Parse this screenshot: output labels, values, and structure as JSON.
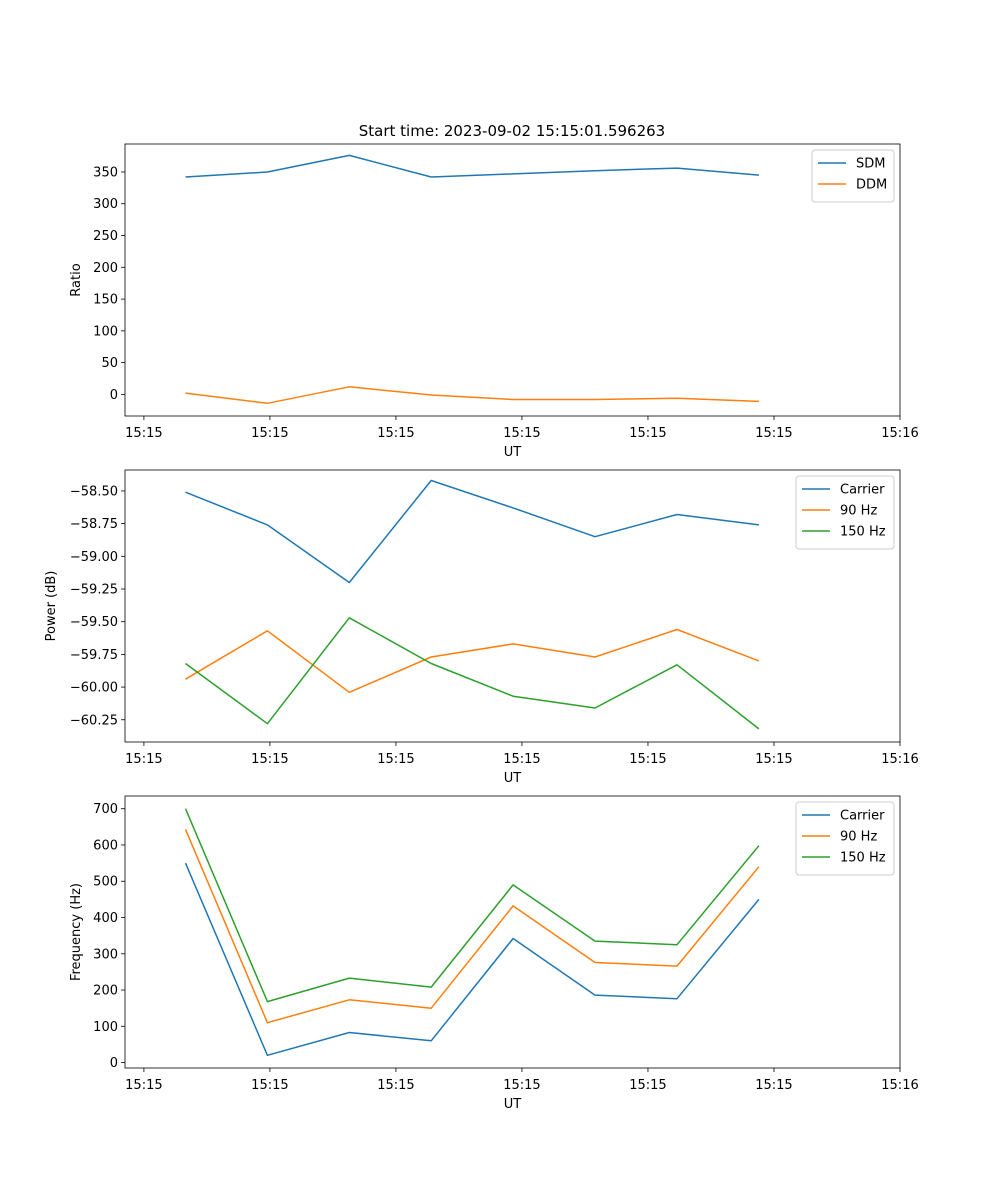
{
  "chart_data": [
    {
      "type": "line",
      "title": "Start time: 2023-09-02 15:15:01.596263",
      "xlabel": "UT",
      "ylabel": "Ratio",
      "x_ticks": [
        "15:15",
        "15:15",
        "15:15",
        "15:15",
        "15:15",
        "15:15",
        "15:16"
      ],
      "x_tick_positions": [
        0,
        1,
        2,
        3,
        4,
        5,
        6
      ],
      "xlim": [
        -0.15,
        6.0
      ],
      "x": [
        0.33,
        0.98,
        1.63,
        2.28,
        2.93,
        3.58,
        4.23,
        4.88
      ],
      "ylim": [
        -34,
        394
      ],
      "y_ticks": [
        0,
        50,
        100,
        150,
        200,
        250,
        300,
        350
      ],
      "y_tick_labels": [
        "0",
        "50",
        "100",
        "150",
        "200",
        "250",
        "300",
        "350"
      ],
      "legend_position": "top-right",
      "series": [
        {
          "name": "SDM",
          "color": "#1f77b4",
          "values": [
            342,
            350,
            376,
            342,
            347,
            352,
            356,
            345
          ]
        },
        {
          "name": "DDM",
          "color": "#ff7f0e",
          "values": [
            2,
            -14,
            12,
            -1,
            -8,
            -8,
            -6,
            -11
          ]
        }
      ]
    },
    {
      "type": "line",
      "title": "",
      "xlabel": "UT",
      "ylabel": "Power (dB)",
      "x_ticks": [
        "15:15",
        "15:15",
        "15:15",
        "15:15",
        "15:15",
        "15:15",
        "15:16"
      ],
      "x_tick_positions": [
        0,
        1,
        2,
        3,
        4,
        5,
        6
      ],
      "xlim": [
        -0.15,
        6.0
      ],
      "x": [
        0.33,
        0.98,
        1.63,
        2.28,
        2.93,
        3.58,
        4.23,
        4.88
      ],
      "ylim": [
        -60.42,
        -58.34
      ],
      "y_ticks": [
        -60.25,
        -60.0,
        -59.75,
        -59.5,
        -59.25,
        -59.0,
        -58.75,
        -58.5
      ],
      "y_tick_labels": [
        "−60.25",
        "−60.00",
        "−59.75",
        "−59.50",
        "−59.25",
        "−59.00",
        "−58.75",
        "−58.50"
      ],
      "legend_position": "top-right",
      "series": [
        {
          "name": "Carrier",
          "color": "#1f77b4",
          "values": [
            -58.51,
            -58.76,
            -59.2,
            -58.42,
            -58.63,
            -58.85,
            -58.68,
            -58.76
          ]
        },
        {
          "name": "90 Hz",
          "color": "#ff7f0e",
          "values": [
            -59.94,
            -59.57,
            -60.04,
            -59.77,
            -59.67,
            -59.77,
            -59.56,
            -59.8
          ]
        },
        {
          "name": "150 Hz",
          "color": "#2ca02c",
          "values": [
            -59.82,
            -60.28,
            -59.47,
            -59.82,
            -60.07,
            -60.16,
            -59.83,
            -60.32
          ]
        }
      ]
    },
    {
      "type": "line",
      "title": "",
      "xlabel": "UT",
      "ylabel": "Frequency (Hz)",
      "x_ticks": [
        "15:15",
        "15:15",
        "15:15",
        "15:15",
        "15:15",
        "15:15",
        "15:16"
      ],
      "x_tick_positions": [
        0,
        1,
        2,
        3,
        4,
        5,
        6
      ],
      "xlim": [
        -0.15,
        6.0
      ],
      "x": [
        0.33,
        0.98,
        1.63,
        2.28,
        2.93,
        3.58,
        4.23,
        4.88
      ],
      "ylim": [
        -15,
        735
      ],
      "y_ticks": [
        0,
        100,
        200,
        300,
        400,
        500,
        600,
        700
      ],
      "y_tick_labels": [
        "0",
        "100",
        "200",
        "300",
        "400",
        "500",
        "600",
        "700"
      ],
      "legend_position": "top-right",
      "series": [
        {
          "name": "Carrier",
          "color": "#1f77b4",
          "values": [
            550,
            20,
            83,
            60,
            342,
            186,
            176,
            450
          ]
        },
        {
          "name": "90 Hz",
          "color": "#ff7f0e",
          "values": [
            643,
            110,
            173,
            150,
            432,
            276,
            266,
            540
          ]
        },
        {
          "name": "150 Hz",
          "color": "#2ca02c",
          "values": [
            700,
            168,
            233,
            208,
            490,
            335,
            325,
            598
          ]
        }
      ]
    }
  ]
}
